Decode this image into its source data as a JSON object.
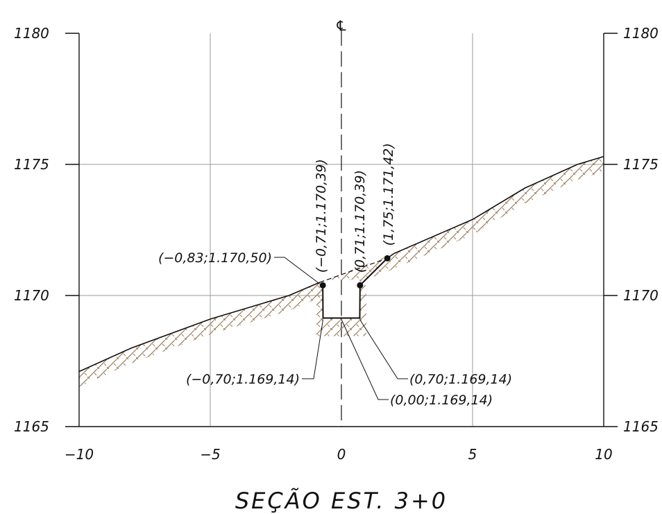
{
  "title": "SEÇÃO EST. 3+0",
  "centerline_symbol": "℄",
  "axes": {
    "x_ticks": [
      "−10",
      "−5",
      "0",
      "5",
      "10"
    ],
    "y_ticks": [
      "1165",
      "1170",
      "1175",
      "1180"
    ],
    "x_range": [
      -10,
      10
    ],
    "y_range": [
      1165,
      1180
    ]
  },
  "points": [
    {
      "label": "(−0,83;1.170,50)",
      "x": -0.83,
      "y": 1170.5
    },
    {
      "label": "(−0,71;1.170,39)",
      "x": -0.71,
      "y": 1170.39
    },
    {
      "label": "(0,71;1.170,39)",
      "x": 0.71,
      "y": 1170.39
    },
    {
      "label": "(1,75;1.171,42)",
      "x": 1.75,
      "y": 1171.42
    },
    {
      "label": "(−0,70;1.169,14)",
      "x": -0.7,
      "y": 1169.14
    },
    {
      "label": "(0,00;1.169,14)",
      "x": 0.0,
      "y": 1169.14
    },
    {
      "label": "(0,70;1.169,14)",
      "x": 0.7,
      "y": 1169.14
    }
  ],
  "terrain": [
    [
      -10,
      1167.1
    ],
    [
      -8,
      1168.0
    ],
    [
      -5,
      1169.1
    ],
    [
      -2,
      1170.0
    ],
    [
      -0.83,
      1170.5
    ],
    [
      2,
      1171.6
    ],
    [
      5,
      1172.9
    ],
    [
      7,
      1174.1
    ],
    [
      9,
      1175.0
    ],
    [
      10,
      1175.3
    ]
  ],
  "colors": {
    "grid": "#9a9a9a",
    "frame": "#111111",
    "terrain_hatch": "#9c7b5a",
    "line": "#111111"
  }
}
